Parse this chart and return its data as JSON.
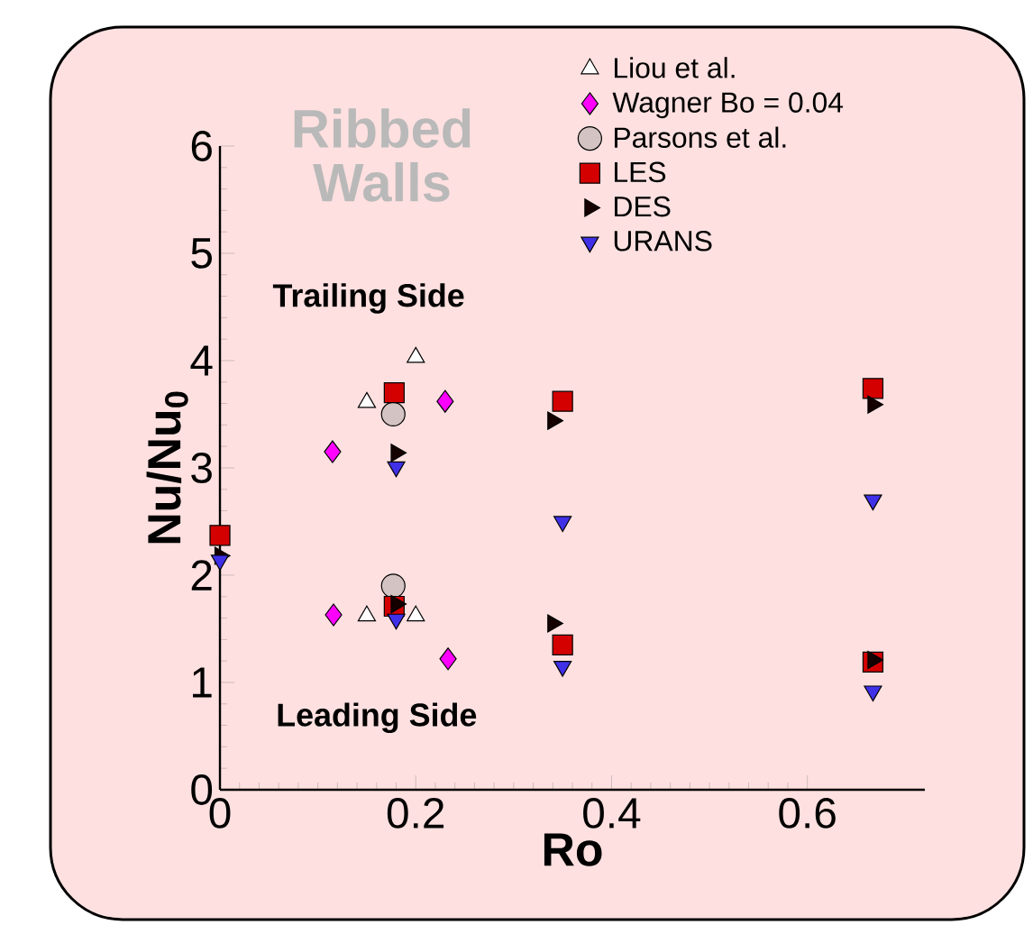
{
  "chart_data": {
    "type": "scatter",
    "title": "Ribbed Walls",
    "xlabel": "Ro",
    "ylabel": "Nu/Nu$_{0}$",
    "annotations": [
      "Trailing Side",
      "Leading Side"
    ],
    "xlim": [
      0,
      0.72
    ],
    "ylim": [
      0,
      6
    ],
    "xticks": [
      0,
      0.2,
      0.4,
      0.6
    ],
    "yticks": [
      0,
      1,
      2,
      3,
      4,
      5,
      6
    ],
    "legend": "top right",
    "grid": false,
    "series": [
      {
        "name": "Liou et al.",
        "color": "#ffffff",
        "marker": "triangle",
        "x": [
          0.15,
          0.2,
          0.15,
          0.2
        ],
        "values": [
          3.61,
          4.03,
          1.62,
          1.62
        ]
      },
      {
        "name": "Wagner Bo = 0.04",
        "color": "#ff00ff",
        "marker": "diamond",
        "x": [
          0.115,
          0.23,
          0.116,
          0.233
        ],
        "values": [
          3.15,
          3.62,
          1.63,
          1.22
        ]
      },
      {
        "name": "Parsons et al.",
        "color": "#d3c3c3",
        "marker": "circle",
        "x": [
          0.177,
          0.177
        ],
        "values": [
          3.5,
          1.9
        ]
      },
      {
        "name": "LES",
        "color": "#d40000",
        "marker": "square",
        "x": [
          0,
          0.178,
          0.178,
          0.35,
          0.35,
          0.667,
          0.667
        ],
        "values": [
          2.37,
          3.7,
          1.71,
          3.62,
          1.35,
          3.74,
          1.19
        ]
      },
      {
        "name": "DES",
        "color": "#150000",
        "marker": "triangle right",
        "x": [
          0,
          0.18,
          0.18,
          0.34,
          0.34,
          0.667,
          0.667
        ],
        "values": [
          2.18,
          3.14,
          1.73,
          3.44,
          1.55,
          3.59,
          1.21
        ]
      },
      {
        "name": "URANS",
        "color": "#4030e8",
        "marker": "triangle down",
        "x": [
          0,
          0.18,
          0.18,
          0.35,
          0.35,
          0.667,
          0.667
        ],
        "values": [
          2.14,
          3.01,
          1.59,
          2.5,
          1.15,
          2.7,
          0.92
        ]
      }
    ]
  }
}
